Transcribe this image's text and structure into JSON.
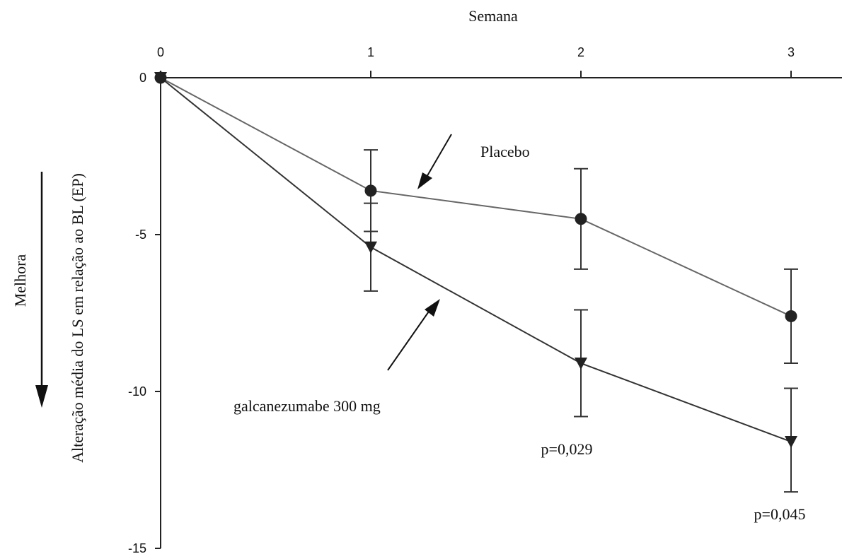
{
  "chart_data": {
    "type": "line",
    "title": "",
    "xlabel": "Semana",
    "ylabel": "Alteração média do LS em relação ao  BL (EP)",
    "improvement_label": "Melhora",
    "x": [
      0,
      1,
      2,
      3
    ],
    "x_tick_labels": [
      "0",
      "1",
      "2",
      "3"
    ],
    "xlim": [
      0,
      3.25
    ],
    "ylim": [
      -15,
      0
    ],
    "y_ticks": [
      0,
      -5,
      -10,
      -15
    ],
    "y_tick_labels": [
      "0",
      "-5",
      "-10",
      "-15"
    ],
    "grid": false,
    "colors": {
      "placebo": "#666666",
      "galcanezumab": "#333333",
      "marker": "#222222",
      "axis": "#222222"
    },
    "series": [
      {
        "name": "Placebo",
        "marker": "circle",
        "values": [
          0,
          -3.6,
          -4.5,
          -7.6
        ],
        "err_low": [
          0,
          -4.9,
          -6.1,
          -9.1
        ],
        "err_high": [
          0,
          -2.3,
          -2.9,
          -6.1
        ]
      },
      {
        "name": "galcanezumabe 300 mg",
        "marker": "triangle-down",
        "values": [
          0,
          -5.4,
          -9.1,
          -11.6
        ],
        "err_low": [
          0,
          -6.8,
          -10.8,
          -13.2
        ],
        "err_high": [
          0,
          -4.0,
          -7.4,
          -9.9
        ]
      }
    ],
    "annotations": [
      {
        "text": "p=0,029",
        "x": 2,
        "y": -11.75
      },
      {
        "text": "p=0,045",
        "x": 3,
        "y": -14.15
      }
    ]
  }
}
